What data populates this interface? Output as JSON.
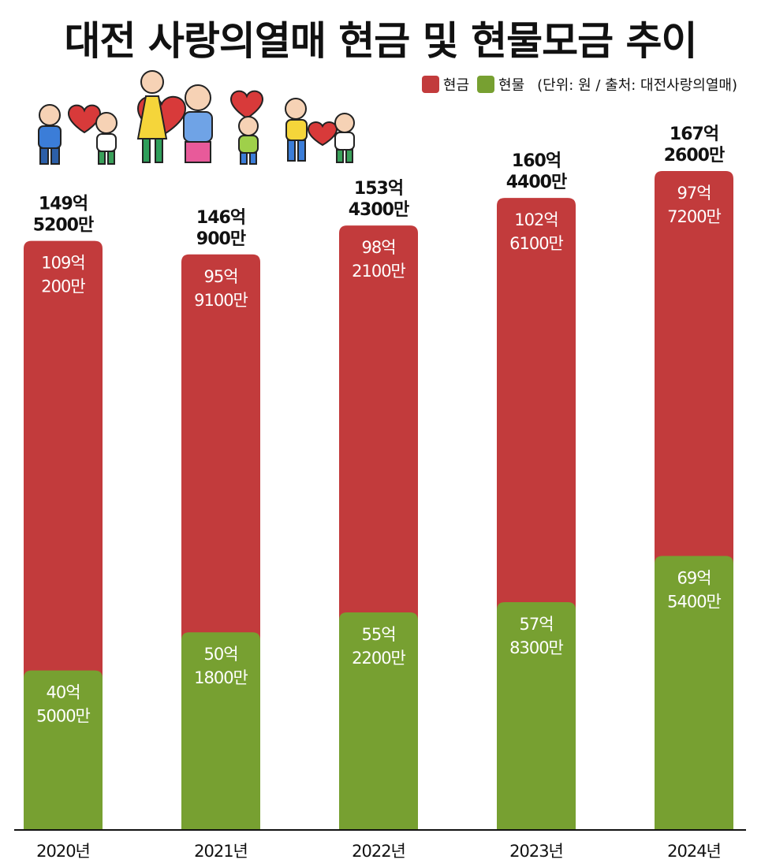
{
  "title": "대전 사랑의열매 현금 및 현물모금 추이",
  "legend": {
    "items": [
      {
        "label": "현금",
        "color": "#c23b3c"
      },
      {
        "label": "현물",
        "color": "#77a031"
      }
    ],
    "unit_note": "(단위: 원 / 출처: 대전사랑의열매)"
  },
  "chart_data": {
    "type": "bar",
    "stacked": true,
    "title": "대전 사랑의열매 현금 및 현물모금 추이",
    "unit": "원",
    "source": "대전사랑의열매",
    "categories": [
      "2020년",
      "2021년",
      "2022년",
      "2023년",
      "2024년"
    ],
    "series": [
      {
        "name": "현물",
        "color": "#77a031",
        "values": [
          40.5,
          50.18,
          55.22,
          57.83,
          69.54
        ],
        "labels": [
          [
            "40억",
            "5000만"
          ],
          [
            "50억",
            "1800만"
          ],
          [
            "55억",
            "2200만"
          ],
          [
            "57억",
            "8300만"
          ],
          [
            "69억",
            "5400만"
          ]
        ]
      },
      {
        "name": "현금",
        "color": "#c23b3c",
        "values": [
          109.02,
          95.91,
          98.21,
          102.61,
          97.72
        ],
        "labels": [
          [
            "109억",
            "200만"
          ],
          [
            "95억",
            "9100만"
          ],
          [
            "98억",
            "2100만"
          ],
          [
            "102억",
            "6100만"
          ],
          [
            "97억",
            "7200만"
          ]
        ]
      }
    ],
    "totals": [
      149.52,
      146.09,
      153.43,
      160.44,
      167.26
    ],
    "total_labels": [
      [
        "149억",
        "5200만"
      ],
      [
        "146억",
        "900만"
      ],
      [
        "153억",
        "4300만"
      ],
      [
        "160억",
        "4400만"
      ],
      [
        "167억",
        "2600만"
      ]
    ],
    "value_unit": "억 원",
    "ylim": [
      0,
      170
    ],
    "xlabel": "",
    "ylabel": ""
  }
}
